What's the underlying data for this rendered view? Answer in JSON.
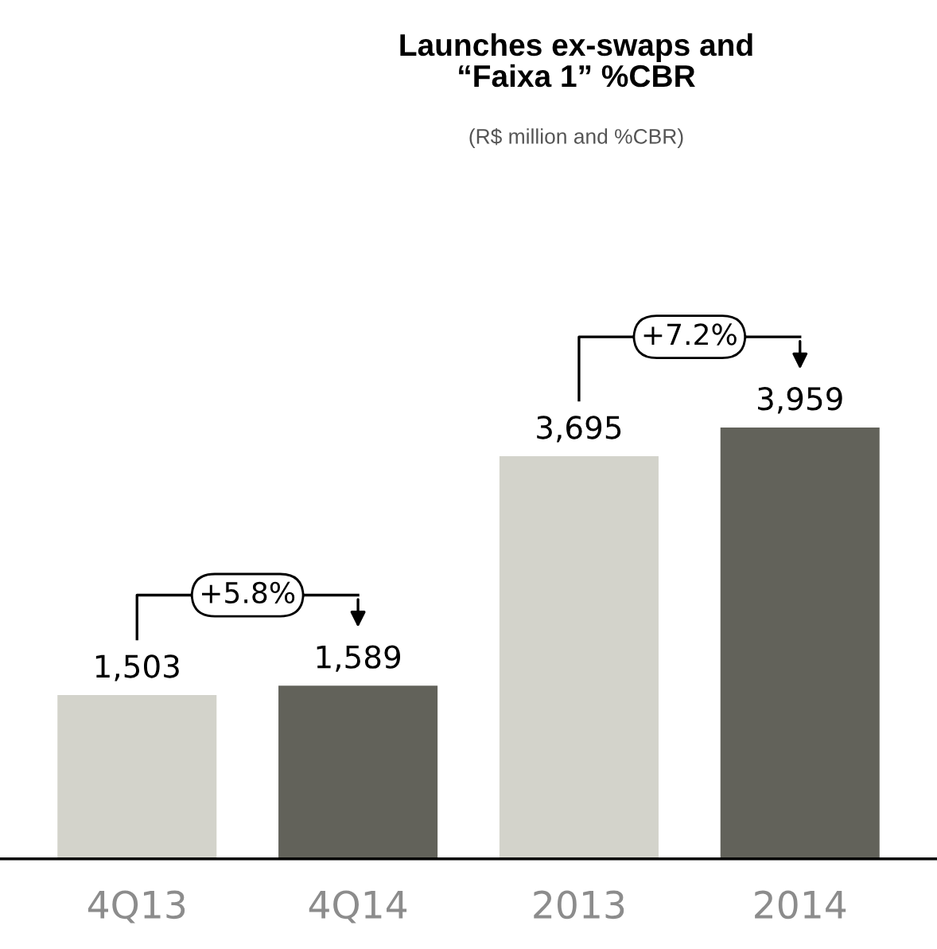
{
  "chart_data": {
    "type": "bar",
    "title": "Launches ex-swaps and\n“Faixa 1” %CBR",
    "subtitle": "(R$ million and %CBR)",
    "categories": [
      "4Q13",
      "4Q14",
      "2013",
      "2014"
    ],
    "values": [
      1503,
      1589,
      3695,
      3959
    ],
    "value_labels": [
      "1,503",
      "1,589",
      "3,695",
      "3,959"
    ],
    "colors": [
      "#d3d3cb",
      "#62625a",
      "#d3d3cb",
      "#62625a"
    ],
    "annotations": [
      "+5.8%",
      "+7.2%"
    ],
    "tick_labels": "x",
    "grid": false
  }
}
